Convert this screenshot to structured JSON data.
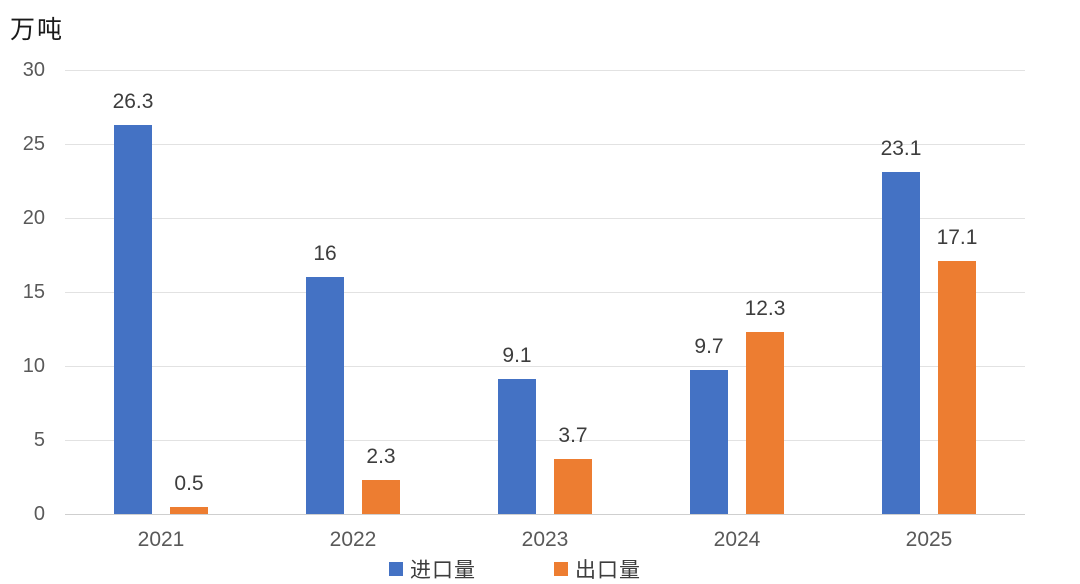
{
  "chart_data": {
    "type": "bar",
    "unit_label": "万吨",
    "categories": [
      "2021",
      "2022",
      "2023",
      "2024",
      "2025"
    ],
    "series": [
      {
        "name": "进口量",
        "color": "#4472c4",
        "values": [
          26.3,
          16,
          9.1,
          9.7,
          23.1
        ],
        "labels": [
          "26.3",
          "16",
          "9.1",
          "9.7",
          "23.1"
        ]
      },
      {
        "name": "出口量",
        "color": "#ed7d31",
        "values": [
          0.5,
          2.3,
          3.7,
          12.3,
          17.1
        ],
        "labels": [
          "0.5",
          "2.3",
          "3.7",
          "12.3",
          "17.1"
        ]
      }
    ],
    "ylim": [
      0,
      30
    ],
    "yticks": [
      0,
      5,
      10,
      15,
      20,
      25,
      30
    ],
    "xlabel": "",
    "ylabel": "万吨",
    "grid": true,
    "legend_position": "bottom",
    "colors": {
      "import_bar": "#4472c4",
      "export_bar": "#ed7d31",
      "gridline": "#e2e2e2",
      "axis_text": "#595959",
      "value_label_text": "#3d3d3d",
      "background": "#ffffff"
    }
  }
}
